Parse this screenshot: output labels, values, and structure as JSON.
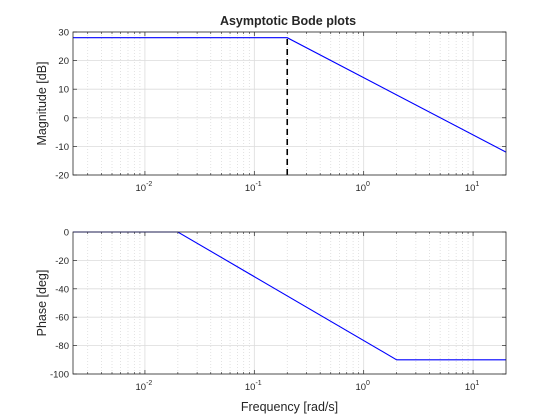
{
  "figure": {
    "title": "Asymptotic Bode plots"
  },
  "chart_data": [
    {
      "type": "line",
      "title": "Asymptotic Bode plots",
      "xlabel": "",
      "ylabel": "Magnitude [dB]",
      "xscale": "log",
      "xlim": [
        0.0022,
        20
      ],
      "ylim": [
        -20,
        30
      ],
      "yticks": [
        -20,
        -10,
        0,
        10,
        20,
        30
      ],
      "ytick_labels": [
        "-20",
        "-10",
        "0",
        "10",
        "20",
        "30"
      ],
      "xticks": [
        0.01,
        0.1,
        1,
        10
      ],
      "xtick_labels": [
        {
          "base": "10",
          "exp": "-2"
        },
        {
          "base": "10",
          "exp": "-1"
        },
        {
          "base": "10",
          "exp": "0"
        },
        {
          "base": "10",
          "exp": "1"
        }
      ],
      "grid": true,
      "series": [
        {
          "color": "#0000ff",
          "style": "solid",
          "x": [
            0.0022,
            0.2,
            20
          ],
          "y": [
            28,
            28,
            -12
          ]
        }
      ],
      "annotations": [
        {
          "type": "vertical-dashed-line",
          "color": "#000000",
          "x": 0.2,
          "y": [
            -20,
            28
          ]
        }
      ]
    },
    {
      "type": "line",
      "title": "",
      "xlabel": "Frequency [rad/s]",
      "ylabel": "Phase [deg]",
      "xscale": "log",
      "xlim": [
        0.0022,
        20
      ],
      "ylim": [
        -100,
        0
      ],
      "yticks": [
        -100,
        -80,
        -60,
        -40,
        -20,
        0
      ],
      "ytick_labels": [
        "-100",
        "-80",
        "-60",
        "-40",
        "-20",
        "0"
      ],
      "xticks": [
        0.01,
        0.1,
        1,
        10
      ],
      "xtick_labels": [
        {
          "base": "10",
          "exp": "-2"
        },
        {
          "base": "10",
          "exp": "-1"
        },
        {
          "base": "10",
          "exp": "0"
        },
        {
          "base": "10",
          "exp": "1"
        }
      ],
      "grid": true,
      "series": [
        {
          "color": "#0000ff",
          "style": "solid",
          "x": [
            0.0022,
            0.02,
            2,
            20
          ],
          "y": [
            0,
            0,
            -90,
            -90
          ]
        }
      ]
    }
  ]
}
